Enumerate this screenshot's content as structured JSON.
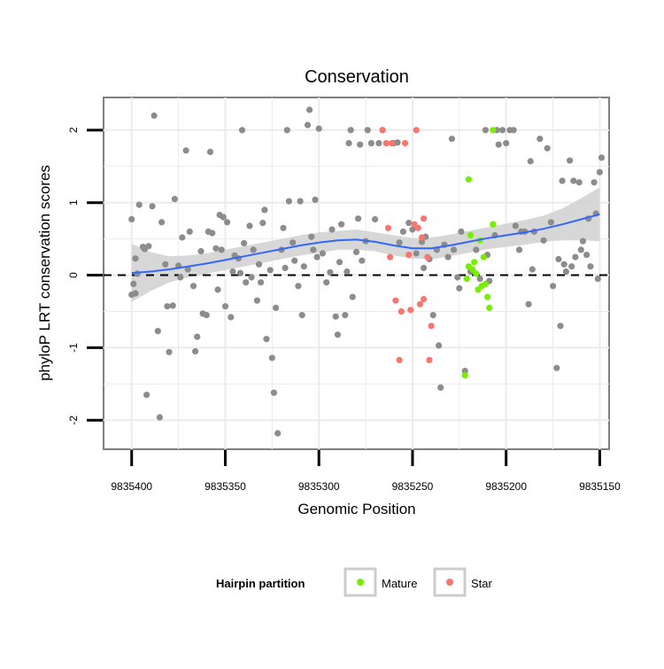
{
  "chart_data": {
    "type": "scatter",
    "title": "Conservation",
    "xlabel": "Genomic Position",
    "ylabel": "phyloP LRT conservation scores",
    "x_reversed": true,
    "xlim": [
      9835415,
      9835145
    ],
    "ylim": [
      -2.4,
      2.45
    ],
    "x_ticks": [
      9835400,
      9835350,
      9835300,
      9835250,
      9835200,
      9835150
    ],
    "x_tick_labels": [
      "9835400",
      "9835350",
      "9835300",
      "9835250",
      "9835200",
      "9835150"
    ],
    "y_ticks": [
      2,
      1,
      0,
      -1,
      -2
    ],
    "y_tick_labels": [
      "2",
      "1",
      "0",
      "-1",
      "-2"
    ],
    "grid": true,
    "reference_line": {
      "y": 0,
      "style": "dashed",
      "color": "#000000"
    },
    "legend": {
      "title": "Hairpin partition",
      "position": "bottom",
      "entries": [
        {
          "label": "Mature",
          "color": "#76ee00"
        },
        {
          "label": "Star",
          "color": "#f8766d"
        }
      ]
    },
    "colors": {
      "other": "#8c8c8c",
      "mature": "#76ee00",
      "star": "#f8766d",
      "smooth": "#3366ff",
      "ribbon": "#d3d3d3",
      "panel_border": "#7f7f7f",
      "grid": "#ebebeb"
    },
    "smooth": {
      "x": [
        9835400,
        9835390,
        9835380,
        9835370,
        9835360,
        9835350,
        9835340,
        9835330,
        9835320,
        9835310,
        9835300,
        9835290,
        9835280,
        9835270,
        9835260,
        9835250,
        9835240,
        9835230,
        9835220,
        9835210,
        9835200,
        9835190,
        9835180,
        9835170,
        9835160,
        9835150
      ],
      "y": [
        0.03,
        0.05,
        0.08,
        0.12,
        0.16,
        0.21,
        0.26,
        0.31,
        0.36,
        0.41,
        0.45,
        0.48,
        0.49,
        0.46,
        0.41,
        0.37,
        0.37,
        0.41,
        0.46,
        0.51,
        0.55,
        0.59,
        0.64,
        0.7,
        0.77,
        0.84
      ],
      "lower": [
        -0.37,
        -0.22,
        -0.1,
        -0.03,
        0.02,
        0.07,
        0.12,
        0.17,
        0.22,
        0.27,
        0.31,
        0.35,
        0.35,
        0.33,
        0.27,
        0.23,
        0.22,
        0.26,
        0.31,
        0.36,
        0.39,
        0.42,
        0.46,
        0.48,
        0.48,
        0.47
      ],
      "upper": [
        0.43,
        0.32,
        0.26,
        0.27,
        0.3,
        0.35,
        0.4,
        0.45,
        0.5,
        0.55,
        0.59,
        0.61,
        0.63,
        0.59,
        0.55,
        0.51,
        0.52,
        0.56,
        0.61,
        0.66,
        0.71,
        0.76,
        0.82,
        0.92,
        1.06,
        1.21
      ]
    },
    "series": [
      {
        "name": "Other",
        "color": "#8c8c8c",
        "points": [
          [
            9835400,
            -0.27
          ],
          [
            9835398,
            -0.25
          ],
          [
            9835399,
            -0.12
          ],
          [
            9835397,
            0.02
          ],
          [
            9835398,
            0.23
          ],
          [
            9835400,
            0.77
          ],
          [
            9835396,
            0.97
          ],
          [
            9835394,
            0.39
          ],
          [
            9835393,
            0.36
          ],
          [
            9835391,
            0.4
          ],
          [
            9835392,
            -1.65
          ],
          [
            9835389,
            0.95
          ],
          [
            9835388,
            2.2
          ],
          [
            9835386,
            -0.77
          ],
          [
            9835385,
            -1.96
          ],
          [
            9835384,
            0.73
          ],
          [
            9835382,
            0.15
          ],
          [
            9835381,
            -0.43
          ],
          [
            9835380,
            -1.06
          ],
          [
            9835378,
            -0.42
          ],
          [
            9835377,
            1.05
          ],
          [
            9835375,
            0.13
          ],
          [
            9835374,
            -0.03
          ],
          [
            9835373,
            0.52
          ],
          [
            9835371,
            1.72
          ],
          [
            9835370,
            0.08
          ],
          [
            9835369,
            0.6
          ],
          [
            9835367,
            -0.15
          ],
          [
            9835366,
            -1.05
          ],
          [
            9835365,
            -0.85
          ],
          [
            9835363,
            0.33
          ],
          [
            9835362,
            -0.53
          ],
          [
            9835360,
            -0.55
          ],
          [
            9835359,
            0.6
          ],
          [
            9835358,
            1.7
          ],
          [
            9835357,
            0.58
          ],
          [
            9835355,
            0.37
          ],
          [
            9835354,
            -0.2
          ],
          [
            9835353,
            0.83
          ],
          [
            9835352,
            0.35
          ],
          [
            9835351,
            0.8
          ],
          [
            9835350,
            -0.43
          ],
          [
            9835349,
            0.73
          ],
          [
            9835347,
            -0.58
          ],
          [
            9835346,
            0.05
          ],
          [
            9835345,
            0.27
          ],
          [
            9835343,
            0.23
          ],
          [
            9835342,
            0.03
          ],
          [
            9835341,
            2.0
          ],
          [
            9835340,
            0.44
          ],
          [
            9835339,
            -0.1
          ],
          [
            9835337,
            0.68
          ],
          [
            9835336,
            -0.03
          ],
          [
            9835335,
            0.35
          ],
          [
            9835333,
            -0.35
          ],
          [
            9835332,
            0.15
          ],
          [
            9835331,
            -0.1
          ],
          [
            9835330,
            0.72
          ],
          [
            9835329,
            0.9
          ],
          [
            9835328,
            -0.88
          ],
          [
            9835326,
            0.07
          ],
          [
            9835325,
            -1.14
          ],
          [
            9835324,
            -1.62
          ],
          [
            9835323,
            -0.45
          ],
          [
            9835322,
            -2.18
          ],
          [
            9835320,
            0.35
          ],
          [
            9835319,
            0.65
          ],
          [
            9835318,
            0.1
          ],
          [
            9835317,
            2.0
          ],
          [
            9835316,
            1.02
          ],
          [
            9835314,
            0.45
          ],
          [
            9835313,
            0.2
          ],
          [
            9835311,
            -0.15
          ],
          [
            9835310,
            1.02
          ],
          [
            9835309,
            -0.55
          ],
          [
            9835308,
            0.12
          ],
          [
            9835306,
            2.07
          ],
          [
            9835305,
            2.28
          ],
          [
            9835304,
            0.53
          ],
          [
            9835303,
            0.35
          ],
          [
            9835302,
            1.04
          ],
          [
            9835301,
            0.25
          ],
          [
            9835300,
            2.02
          ],
          [
            9835298,
            0.3
          ],
          [
            9835296,
            -0.1
          ],
          [
            9835294,
            0.04
          ],
          [
            9835293,
            0.63
          ],
          [
            9835291,
            -0.57
          ],
          [
            9835290,
            -0.82
          ],
          [
            9835289,
            0.18
          ],
          [
            9835288,
            0.7
          ],
          [
            9835286,
            -0.55
          ],
          [
            9835285,
            0.05
          ],
          [
            9835284,
            1.82
          ],
          [
            9835283,
            2.0
          ],
          [
            9835282,
            -0.3
          ],
          [
            9835280,
            0.32
          ],
          [
            9835279,
            0.78
          ],
          [
            9835278,
            1.8
          ],
          [
            9835277,
            0.2
          ],
          [
            9835275,
            0.47
          ],
          [
            9835274,
            2.0
          ],
          [
            9835272,
            1.82
          ],
          [
            9835270,
            0.77
          ],
          [
            9835268,
            1.82
          ],
          [
            9835266,
            2.0
          ],
          [
            9835260,
            1.82
          ],
          [
            9835258,
            1.83
          ],
          [
            9835257,
            0.45
          ],
          [
            9835255,
            0.6
          ],
          [
            9835252,
            0.72
          ],
          [
            9835250,
            0.63
          ],
          [
            9835248,
            0.3
          ],
          [
            9835245,
            0.46
          ],
          [
            9835244,
            0.1
          ],
          [
            9835243,
            0.53
          ],
          [
            9835241,
            0.22
          ],
          [
            9835239,
            -0.55
          ],
          [
            9835237,
            0.35
          ],
          [
            9835236,
            -0.97
          ],
          [
            9835235,
            -1.55
          ],
          [
            9835233,
            0.42
          ],
          [
            9835231,
            0.25
          ],
          [
            9835229,
            1.88
          ],
          [
            9835228,
            0.35
          ],
          [
            9835226,
            -0.03
          ],
          [
            9835225,
            -0.18
          ],
          [
            9835224,
            0.6
          ],
          [
            9835222,
            -1.32
          ],
          [
            9835219,
            0.05
          ],
          [
            9835216,
            0.35
          ],
          [
            9835214,
            -0.05
          ],
          [
            9835211,
            2.0
          ],
          [
            9835210,
            0.28
          ],
          [
            9835209,
            -0.08
          ],
          [
            9835207,
            0.7
          ],
          [
            9835206,
            0.55
          ],
          [
            9835205,
            2.0
          ],
          [
            9835204,
            1.8
          ],
          [
            9835202,
            2.0
          ],
          [
            9835200,
            1.82
          ],
          [
            9835198,
            2.0
          ],
          [
            9835196,
            2.0
          ],
          [
            9835195,
            0.68
          ],
          [
            9835193,
            0.35
          ],
          [
            9835192,
            0.6
          ],
          [
            9835190,
            0.6
          ],
          [
            9835188,
            -0.4
          ],
          [
            9835187,
            1.57
          ],
          [
            9835186,
            0.08
          ],
          [
            9835185,
            0.6
          ],
          [
            9835182,
            1.88
          ],
          [
            9835180,
            0.48
          ],
          [
            9835178,
            1.75
          ],
          [
            9835176,
            0.73
          ],
          [
            9835175,
            -0.15
          ],
          [
            9835173,
            -1.28
          ],
          [
            9835172,
            0.22
          ],
          [
            9835171,
            -0.7
          ],
          [
            9835170,
            1.3
          ],
          [
            9835169,
            0.15
          ],
          [
            9835168,
            0.05
          ],
          [
            9835166,
            1.58
          ],
          [
            9835165,
            0.12
          ],
          [
            9835164,
            1.3
          ],
          [
            9835163,
            0.25
          ],
          [
            9835161,
            1.28
          ],
          [
            9835160,
            0.35
          ],
          [
            9835159,
            0.47
          ],
          [
            9835157,
            0.28
          ],
          [
            9835156,
            0.78
          ],
          [
            9835155,
            0.12
          ],
          [
            9835153,
            1.28
          ],
          [
            9835152,
            0.85
          ],
          [
            9835151,
            -0.05
          ],
          [
            9835150,
            1.42
          ],
          [
            9835149,
            1.62
          ]
        ]
      },
      {
        "name": "Mature",
        "color": "#76ee00",
        "points": [
          [
            9835220,
            1.32
          ],
          [
            9835222,
            -1.38
          ],
          [
            9835221,
            -0.05
          ],
          [
            9835220,
            0.12
          ],
          [
            9835219,
            0.55
          ],
          [
            9835218,
            0.08
          ],
          [
            9835217,
            0.18
          ],
          [
            9835216,
            0.02
          ],
          [
            9835215,
            -0.2
          ],
          [
            9835214,
            0.48
          ],
          [
            9835213,
            -0.15
          ],
          [
            9835212,
            0.25
          ],
          [
            9835211,
            -0.12
          ],
          [
            9835210,
            -0.3
          ],
          [
            9835209,
            -0.45
          ],
          [
            9835207,
            0.7
          ],
          [
            9835207,
            2.0
          ]
        ]
      },
      {
        "name": "Star",
        "color": "#f8766d",
        "points": [
          [
            9835266,
            2.0
          ],
          [
            9835264,
            1.82
          ],
          [
            9835263,
            0.65
          ],
          [
            9835262,
            0.25
          ],
          [
            9835261,
            1.82
          ],
          [
            9835259,
            -0.35
          ],
          [
            9835257,
            -1.17
          ],
          [
            9835256,
            -0.5
          ],
          [
            9835254,
            1.82
          ],
          [
            9835252,
            0.28
          ],
          [
            9835251,
            -0.48
          ],
          [
            9835249,
            0.7
          ],
          [
            9835248,
            2.0
          ],
          [
            9835247,
            0.65
          ],
          [
            9835246,
            -0.4
          ],
          [
            9835245,
            0.52
          ],
          [
            9835244,
            0.78
          ],
          [
            9835242,
            0.25
          ],
          [
            9835241,
            -1.17
          ],
          [
            9835240,
            -0.7
          ],
          [
            9835244,
            -0.33
          ]
        ]
      }
    ]
  }
}
